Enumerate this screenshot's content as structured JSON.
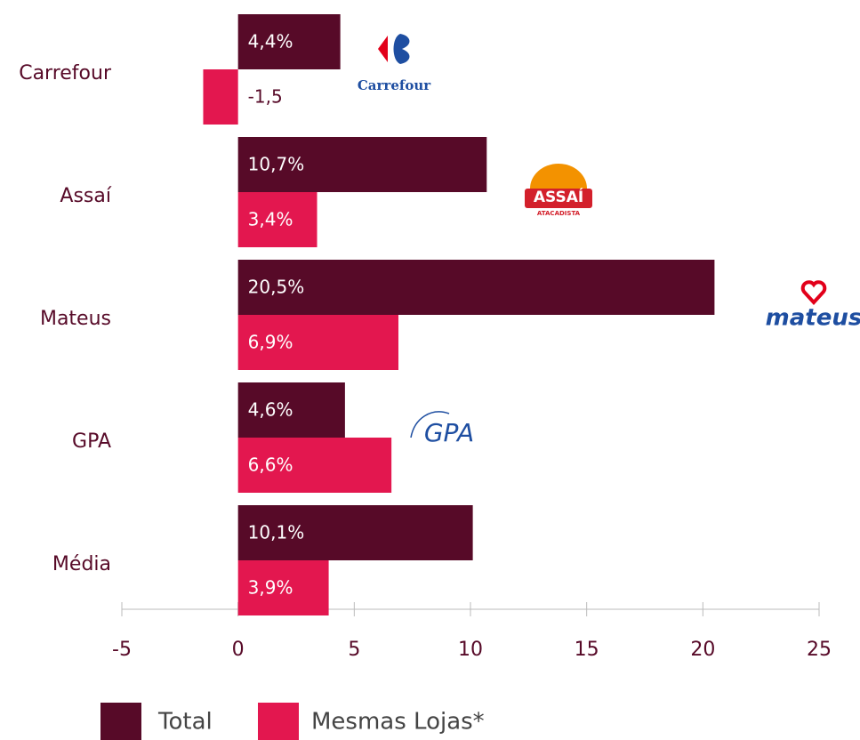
{
  "chart_data": {
    "type": "barh",
    "categories": [
      "Carrefour",
      "Assaí",
      "Mateus",
      "GPA",
      "Média"
    ],
    "series": [
      {
        "name": "Total",
        "color": "#570a28",
        "values": [
          4.4,
          10.7,
          20.5,
          4.6,
          10.1
        ],
        "value_labels": [
          "4,4%",
          "10,7%",
          "20,5%",
          "4,6%",
          "10,1%"
        ]
      },
      {
        "name": "Mesmas Lojas*",
        "color": "#e3174f",
        "values": [
          -1.5,
          3.4,
          6.9,
          6.6,
          3.9
        ],
        "value_labels": [
          "-1,5",
          "3,4%",
          "6,9%",
          "6,6%",
          "3,9%"
        ]
      }
    ],
    "xlim": [
      -5,
      25
    ],
    "xticks": [
      -5,
      0,
      5,
      10,
      15,
      20,
      25
    ],
    "legend": "bottom",
    "annotations": [
      "Carrefour",
      "ASSAÍ",
      "ATACADISTA",
      "mateus",
      "GPA"
    ]
  }
}
